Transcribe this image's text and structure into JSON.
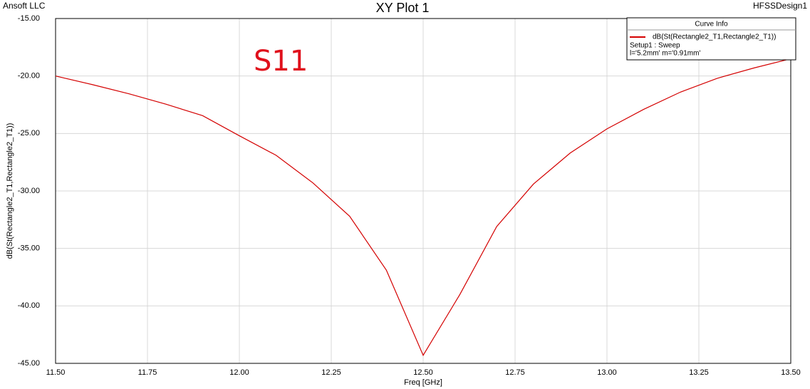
{
  "header": {
    "left": "Ansoft LLC",
    "right": "HFSSDesign1"
  },
  "chart_data": {
    "type": "line",
    "title": "XY Plot 1",
    "x_label": "Freq [GHz]",
    "y_label": "dB(St(Rectangle2_T1,Rectangle2_T1))",
    "annotation": "S11",
    "legend_title": "Curve Info",
    "legend_notes": [
      "Setup1 : Sweep",
      "l='5.2mm' m='0.91mm'"
    ],
    "legend": "upper right",
    "grid": true,
    "x": [
      11.5,
      11.6,
      11.7,
      11.8,
      11.9,
      12.0,
      12.1,
      12.2,
      12.3,
      12.4,
      12.5,
      12.6,
      12.7,
      12.8,
      12.9,
      13.0,
      13.1,
      13.2,
      13.3,
      13.4,
      13.5
    ],
    "series": [
      {
        "name": "dB(St(Rectangle2_T1,Rectangle2_T1))",
        "color": "#d40000",
        "values": [
          -20.0,
          -20.75,
          -21.55,
          -22.45,
          -23.45,
          -25.2,
          -26.9,
          -29.3,
          -32.2,
          -36.9,
          -44.3,
          -39.0,
          -33.1,
          -29.4,
          -26.7,
          -24.6,
          -22.9,
          -21.4,
          -20.2,
          -19.3,
          -18.5
        ]
      }
    ],
    "xlim": [
      11.5,
      13.5
    ],
    "xticks": [
      {
        "value": 11.5,
        "label": "11.50"
      },
      {
        "value": 11.75,
        "label": "11.75"
      },
      {
        "value": 12.0,
        "label": "12.00"
      },
      {
        "value": 12.25,
        "label": "12.25"
      },
      {
        "value": 12.5,
        "label": "12.50"
      },
      {
        "value": 12.75,
        "label": "12.75"
      },
      {
        "value": 13.0,
        "label": "13.00"
      },
      {
        "value": 13.25,
        "label": "13.25"
      },
      {
        "value": 13.5,
        "label": "13.50"
      }
    ],
    "ylim": [
      -45,
      -15
    ],
    "yticks": [
      {
        "value": -15,
        "label": "-15.00"
      },
      {
        "value": -20,
        "label": "-20.00"
      },
      {
        "value": -25,
        "label": "-25.00"
      },
      {
        "value": -30,
        "label": "-30.00"
      },
      {
        "value": -35,
        "label": "-35.00"
      },
      {
        "value": -40,
        "label": "-40.00"
      },
      {
        "value": -45,
        "label": "-45.00"
      }
    ]
  }
}
